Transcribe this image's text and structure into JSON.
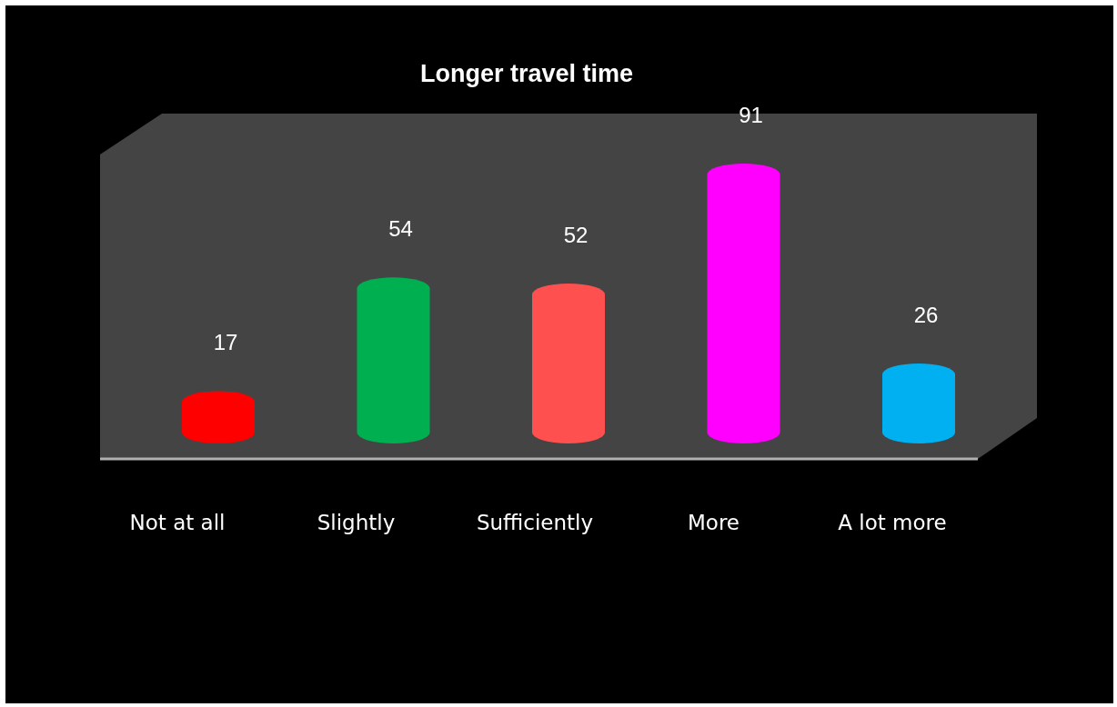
{
  "chart_data": {
    "type": "bar",
    "title": "Longer travel time",
    "categories": [
      "Not at all",
      "Slightly",
      "Sufficiently",
      "More",
      "A lot more"
    ],
    "values": [
      17,
      54,
      52,
      91,
      26
    ],
    "colors": [
      "#ff0000",
      "#00b050",
      "#ff5050",
      "#ff00ff",
      "#00b0f0"
    ],
    "data_labels": true
  }
}
